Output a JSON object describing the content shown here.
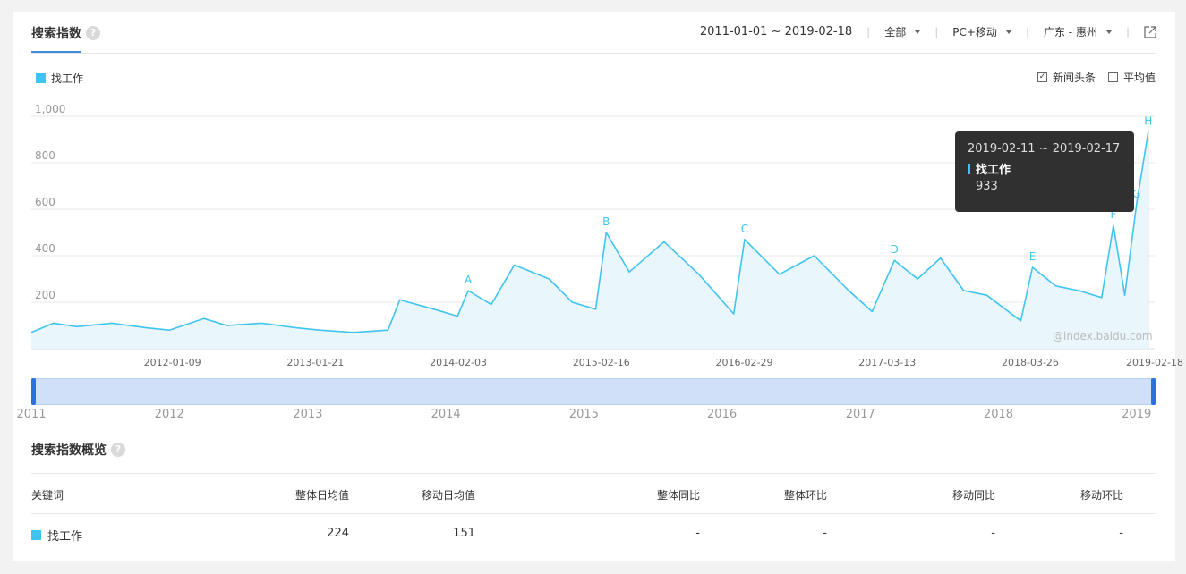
{
  "header": {
    "tab_title": "搜索指数",
    "date_range": "2011-01-01 ~ 2019-02-18",
    "region_scope": "全部",
    "device": "PC+移动",
    "location": "广东 - 惠州"
  },
  "legend": {
    "series_name": "找工作",
    "color": "#3fc4f0"
  },
  "options": {
    "news_label": "新闻头条",
    "news_checked": true,
    "avg_label": "平均值",
    "avg_checked": false
  },
  "tooltip": {
    "date": "2019-02-11 ~ 2019-02-17",
    "series": "找工作",
    "value": "933"
  },
  "watermark": "@index.baidu.com",
  "slider": {
    "years": [
      "2011",
      "2012",
      "2013",
      "2014",
      "2015",
      "2016",
      "2017",
      "2018",
      "2019"
    ]
  },
  "chart_data": {
    "type": "area",
    "series_name": "找工作",
    "ylim": [
      0,
      1000
    ],
    "yticks": [
      "200",
      "400",
      "600",
      "800",
      "1,000"
    ],
    "xtick_labels": [
      "2012-01-09",
      "2013-01-21",
      "2014-02-03",
      "2015-02-16",
      "2016-02-29",
      "2017-03-13",
      "2018-03-26",
      "2019-02-18"
    ],
    "x": [
      "2011-01",
      "2011-03",
      "2011-05",
      "2011-08",
      "2011-11",
      "2012-01",
      "2012-04",
      "2012-06",
      "2012-09",
      "2012-12",
      "2013-02",
      "2013-05",
      "2013-08",
      "2013-09",
      "2013-12",
      "2014-02",
      "2014-03",
      "2014-05",
      "2014-07",
      "2014-10",
      "2014-12",
      "2015-02",
      "2015-03",
      "2015-05",
      "2015-08",
      "2015-11",
      "2016-02",
      "2016-03",
      "2016-06",
      "2016-09",
      "2016-12",
      "2017-02",
      "2017-04",
      "2017-06",
      "2017-08",
      "2017-10",
      "2017-12",
      "2018-03",
      "2018-04",
      "2018-06",
      "2018-08",
      "2018-10",
      "2018-11",
      "2018-12",
      "2019-01",
      "2019-02"
    ],
    "values": [
      70,
      110,
      95,
      110,
      90,
      80,
      130,
      100,
      110,
      90,
      80,
      70,
      80,
      210,
      170,
      140,
      250,
      190,
      360,
      300,
      200,
      170,
      500,
      330,
      460,
      320,
      150,
      470,
      320,
      400,
      250,
      160,
      380,
      300,
      390,
      250,
      230,
      120,
      350,
      270,
      250,
      220,
      530,
      230,
      620,
      933
    ],
    "annotations": [
      {
        "label": "A",
        "x": "2014-03"
      },
      {
        "label": "B",
        "x": "2015-03"
      },
      {
        "label": "C",
        "x": "2016-03"
      },
      {
        "label": "D",
        "x": "2017-04"
      },
      {
        "label": "E",
        "x": "2018-04"
      },
      {
        "label": "F",
        "x": "2018-11"
      },
      {
        "label": "G",
        "x": "2019-01"
      },
      {
        "label": "H",
        "x": "2019-02"
      }
    ]
  },
  "overview": {
    "title": "搜索指数概览",
    "columns": [
      "关键词",
      "整体日均值",
      "移动日均值",
      "整体同比",
      "整体环比",
      "移动同比",
      "移动环比"
    ],
    "row": {
      "keyword": "找工作",
      "overall_avg": "224",
      "mobile_avg": "151",
      "overall_yoy": "-",
      "overall_mom": "-",
      "mobile_yoy": "-",
      "mobile_mom": "-"
    }
  }
}
